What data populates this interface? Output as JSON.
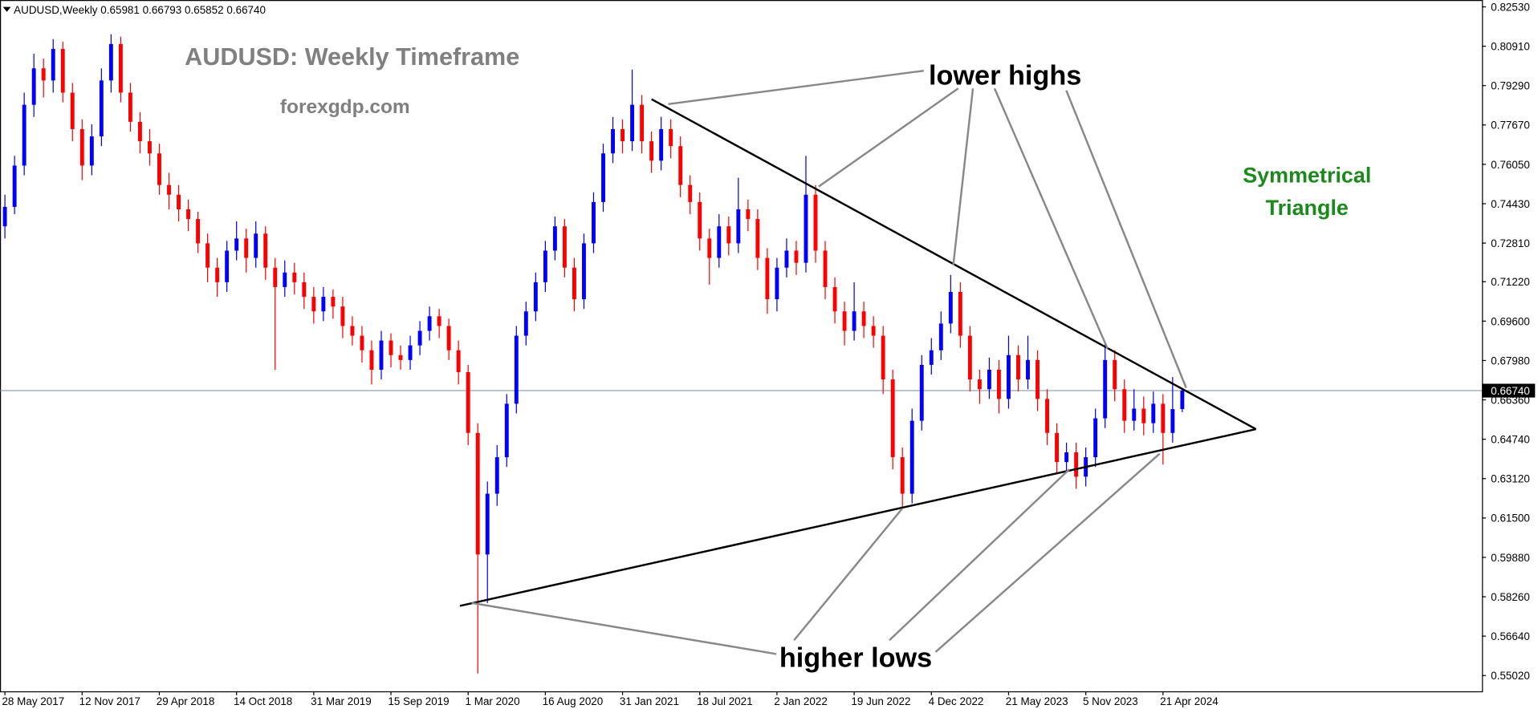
{
  "chart_data": {
    "type": "candlestick",
    "header": "AUDUSD,Weekly  0.65981 0.66793 0.65852 0.66740",
    "title": "AUDUSD: Weekly Timeframe",
    "subtitle": "forexgdp.com",
    "annotations": [
      "lower highs",
      "higher lows",
      "Symmetrical",
      "Triangle"
    ],
    "up_color": "#0000ff",
    "down_color": "#ff0000",
    "ylim": [
      0.5437,
      0.8281
    ],
    "yticks": [
      {
        "value": 0.8253,
        "label": "0.82530"
      },
      {
        "value": 0.8091,
        "label": "0.80910"
      },
      {
        "value": 0.7929,
        "label": "0.79290"
      },
      {
        "value": 0.7767,
        "label": "0.77670"
      },
      {
        "value": 0.7605,
        "label": "0.76050"
      },
      {
        "value": 0.7443,
        "label": "0.74430"
      },
      {
        "value": 0.7281,
        "label": "0.72810"
      },
      {
        "value": 0.7122,
        "label": "0.71220"
      },
      {
        "value": 0.696,
        "label": "0.69600"
      },
      {
        "value": 0.6798,
        "label": "0.67980"
      },
      {
        "value": 0.6636,
        "label": "0.66360"
      },
      {
        "value": 0.6474,
        "label": "0.64740"
      },
      {
        "value": 0.6312,
        "label": "0.63120"
      },
      {
        "value": 0.615,
        "label": "0.61500"
      },
      {
        "value": 0.5988,
        "label": "0.59880"
      },
      {
        "value": 0.5826,
        "label": "0.58260"
      },
      {
        "value": 0.5664,
        "label": "0.56640"
      },
      {
        "value": 0.5502,
        "label": "0.55020"
      }
    ],
    "price_line": {
      "value": 0.6674,
      "label": "0.66740"
    },
    "categories": [
      "28 May 2017",
      null,
      null,
      null,
      null,
      null,
      null,
      null,
      "12 Nov 2017",
      null,
      null,
      null,
      null,
      null,
      null,
      null,
      "29 Apr 2018",
      null,
      null,
      null,
      null,
      null,
      null,
      null,
      "14 Oct 2018",
      null,
      null,
      null,
      null,
      null,
      null,
      null,
      "31 Mar 2019",
      null,
      null,
      null,
      null,
      null,
      null,
      null,
      "15 Sep 2019",
      null,
      null,
      null,
      null,
      null,
      null,
      null,
      "1 Mar 2020",
      null,
      null,
      null,
      null,
      null,
      null,
      null,
      "16 Aug 2020",
      null,
      null,
      null,
      null,
      null,
      null,
      null,
      "31 Jan 2021",
      null,
      null,
      null,
      null,
      null,
      null,
      null,
      "18 Jul 2021",
      null,
      null,
      null,
      null,
      null,
      null,
      null,
      "2 Jan 2022",
      null,
      null,
      null,
      null,
      null,
      null,
      null,
      "19 Jun 2022",
      null,
      null,
      null,
      null,
      null,
      null,
      null,
      "4 Dec 2022",
      null,
      null,
      null,
      null,
      null,
      null,
      null,
      "21 May 2023",
      null,
      null,
      null,
      null,
      null,
      null,
      null,
      "5 Nov 2023",
      null,
      null,
      null,
      null,
      null,
      null,
      null,
      "21 Apr 2024",
      null,
      null
    ],
    "ohlc": [
      [
        0.735,
        0.748,
        0.73,
        0.743
      ],
      [
        0.743,
        0.764,
        0.74,
        0.76
      ],
      [
        0.76,
        0.79,
        0.756,
        0.785
      ],
      [
        0.785,
        0.806,
        0.78,
        0.8
      ],
      [
        0.8,
        0.804,
        0.788,
        0.795
      ],
      [
        0.795,
        0.812,
        0.79,
        0.808
      ],
      [
        0.808,
        0.811,
        0.786,
        0.79
      ],
      [
        0.79,
        0.794,
        0.77,
        0.775
      ],
      [
        0.775,
        0.779,
        0.754,
        0.76
      ],
      [
        0.76,
        0.777,
        0.756,
        0.772
      ],
      [
        0.772,
        0.8,
        0.768,
        0.795
      ],
      [
        0.795,
        0.814,
        0.79,
        0.81
      ],
      [
        0.81,
        0.813,
        0.786,
        0.79
      ],
      [
        0.79,
        0.794,
        0.774,
        0.778
      ],
      [
        0.778,
        0.782,
        0.765,
        0.77
      ],
      [
        0.77,
        0.775,
        0.76,
        0.765
      ],
      [
        0.765,
        0.769,
        0.748,
        0.752
      ],
      [
        0.752,
        0.757,
        0.742,
        0.748
      ],
      [
        0.748,
        0.752,
        0.737,
        0.742
      ],
      [
        0.742,
        0.746,
        0.733,
        0.738
      ],
      [
        0.738,
        0.741,
        0.724,
        0.728
      ],
      [
        0.728,
        0.732,
        0.712,
        0.718
      ],
      [
        0.718,
        0.722,
        0.706,
        0.712
      ],
      [
        0.712,
        0.729,
        0.708,
        0.725
      ],
      [
        0.725,
        0.737,
        0.721,
        0.73
      ],
      [
        0.73,
        0.734,
        0.716,
        0.722
      ],
      [
        0.722,
        0.737,
        0.718,
        0.732
      ],
      [
        0.732,
        0.735,
        0.713,
        0.718
      ],
      [
        0.718,
        0.722,
        0.676,
        0.71
      ],
      [
        0.71,
        0.721,
        0.706,
        0.716
      ],
      [
        0.716,
        0.72,
        0.707,
        0.712
      ],
      [
        0.712,
        0.716,
        0.701,
        0.706
      ],
      [
        0.706,
        0.71,
        0.695,
        0.7
      ],
      [
        0.7,
        0.71,
        0.696,
        0.706
      ],
      [
        0.706,
        0.709,
        0.697,
        0.702
      ],
      [
        0.702,
        0.706,
        0.689,
        0.694
      ],
      [
        0.694,
        0.698,
        0.686,
        0.69
      ],
      [
        0.69,
        0.694,
        0.679,
        0.684
      ],
      [
        0.684,
        0.688,
        0.67,
        0.676
      ],
      [
        0.676,
        0.692,
        0.672,
        0.688
      ],
      [
        0.688,
        0.691,
        0.677,
        0.682
      ],
      [
        0.682,
        0.686,
        0.676,
        0.68
      ],
      [
        0.68,
        0.69,
        0.676,
        0.686
      ],
      [
        0.686,
        0.696,
        0.682,
        0.692
      ],
      [
        0.692,
        0.702,
        0.688,
        0.698
      ],
      [
        0.698,
        0.701,
        0.689,
        0.694
      ],
      [
        0.694,
        0.697,
        0.68,
        0.684
      ],
      [
        0.684,
        0.688,
        0.67,
        0.675
      ],
      [
        0.675,
        0.678,
        0.645,
        0.65
      ],
      [
        0.65,
        0.654,
        0.551,
        0.6
      ],
      [
        0.6,
        0.63,
        0.58,
        0.625
      ],
      [
        0.625,
        0.645,
        0.62,
        0.64
      ],
      [
        0.64,
        0.666,
        0.636,
        0.662
      ],
      [
        0.662,
        0.694,
        0.658,
        0.69
      ],
      [
        0.69,
        0.704,
        0.686,
        0.7
      ],
      [
        0.7,
        0.716,
        0.696,
        0.712
      ],
      [
        0.712,
        0.729,
        0.708,
        0.725
      ],
      [
        0.725,
        0.739,
        0.721,
        0.735
      ],
      [
        0.735,
        0.738,
        0.714,
        0.718
      ],
      [
        0.718,
        0.722,
        0.7,
        0.705
      ],
      [
        0.705,
        0.732,
        0.701,
        0.728
      ],
      [
        0.728,
        0.749,
        0.724,
        0.745
      ],
      [
        0.745,
        0.769,
        0.741,
        0.765
      ],
      [
        0.765,
        0.78,
        0.761,
        0.775
      ],
      [
        0.775,
        0.779,
        0.765,
        0.77
      ],
      [
        0.77,
        0.7995,
        0.766,
        0.785
      ],
      [
        0.785,
        0.789,
        0.765,
        0.77
      ],
      [
        0.77,
        0.774,
        0.757,
        0.762
      ],
      [
        0.762,
        0.78,
        0.758,
        0.775
      ],
      [
        0.775,
        0.779,
        0.763,
        0.768
      ],
      [
        0.768,
        0.772,
        0.747,
        0.752
      ],
      [
        0.752,
        0.756,
        0.74,
        0.745
      ],
      [
        0.745,
        0.749,
        0.725,
        0.73
      ],
      [
        0.73,
        0.734,
        0.711,
        0.722
      ],
      [
        0.722,
        0.74,
        0.718,
        0.735
      ],
      [
        0.735,
        0.739,
        0.723,
        0.728
      ],
      [
        0.728,
        0.755,
        0.724,
        0.742
      ],
      [
        0.742,
        0.746,
        0.733,
        0.738
      ],
      [
        0.738,
        0.742,
        0.717,
        0.722
      ],
      [
        0.722,
        0.726,
        0.699,
        0.705
      ],
      [
        0.705,
        0.722,
        0.7,
        0.718
      ],
      [
        0.718,
        0.73,
        0.714,
        0.725
      ],
      [
        0.725,
        0.729,
        0.715,
        0.72
      ],
      [
        0.72,
        0.764,
        0.716,
        0.748
      ],
      [
        0.748,
        0.752,
        0.72,
        0.725
      ],
      [
        0.725,
        0.729,
        0.705,
        0.71
      ],
      [
        0.71,
        0.714,
        0.695,
        0.7
      ],
      [
        0.7,
        0.704,
        0.686,
        0.692
      ],
      [
        0.692,
        0.712,
        0.688,
        0.7
      ],
      [
        0.7,
        0.704,
        0.689,
        0.694
      ],
      [
        0.694,
        0.698,
        0.685,
        0.69
      ],
      [
        0.69,
        0.694,
        0.666,
        0.672
      ],
      [
        0.672,
        0.676,
        0.635,
        0.64
      ],
      [
        0.64,
        0.644,
        0.619,
        0.625
      ],
      [
        0.625,
        0.66,
        0.621,
        0.655
      ],
      [
        0.655,
        0.682,
        0.651,
        0.678
      ],
      [
        0.678,
        0.689,
        0.674,
        0.684
      ],
      [
        0.684,
        0.7,
        0.68,
        0.695
      ],
      [
        0.695,
        0.715,
        0.691,
        0.708
      ],
      [
        0.708,
        0.712,
        0.685,
        0.69
      ],
      [
        0.69,
        0.694,
        0.667,
        0.672
      ],
      [
        0.672,
        0.676,
        0.662,
        0.668
      ],
      [
        0.668,
        0.681,
        0.664,
        0.676
      ],
      [
        0.676,
        0.68,
        0.658,
        0.664
      ],
      [
        0.664,
        0.69,
        0.66,
        0.682
      ],
      [
        0.682,
        0.686,
        0.667,
        0.672
      ],
      [
        0.672,
        0.69,
        0.668,
        0.68
      ],
      [
        0.68,
        0.684,
        0.659,
        0.664
      ],
      [
        0.664,
        0.668,
        0.645,
        0.65
      ],
      [
        0.65,
        0.654,
        0.633,
        0.638
      ],
      [
        0.638,
        0.646,
        0.634,
        0.642
      ],
      [
        0.642,
        0.646,
        0.627,
        0.632
      ],
      [
        0.632,
        0.644,
        0.628,
        0.64
      ],
      [
        0.64,
        0.66,
        0.636,
        0.656
      ],
      [
        0.656,
        0.687,
        0.652,
        0.68
      ],
      [
        0.68,
        0.684,
        0.663,
        0.668
      ],
      [
        0.668,
        0.672,
        0.65,
        0.655
      ],
      [
        0.655,
        0.668,
        0.651,
        0.66
      ],
      [
        0.66,
        0.665,
        0.649,
        0.654
      ],
      [
        0.654,
        0.667,
        0.65,
        0.662
      ],
      [
        0.662,
        0.666,
        0.637,
        0.65
      ],
      [
        0.65,
        0.673,
        0.646,
        0.6598
      ],
      [
        0.65981,
        0.66793,
        0.65852,
        0.6674
      ]
    ]
  }
}
